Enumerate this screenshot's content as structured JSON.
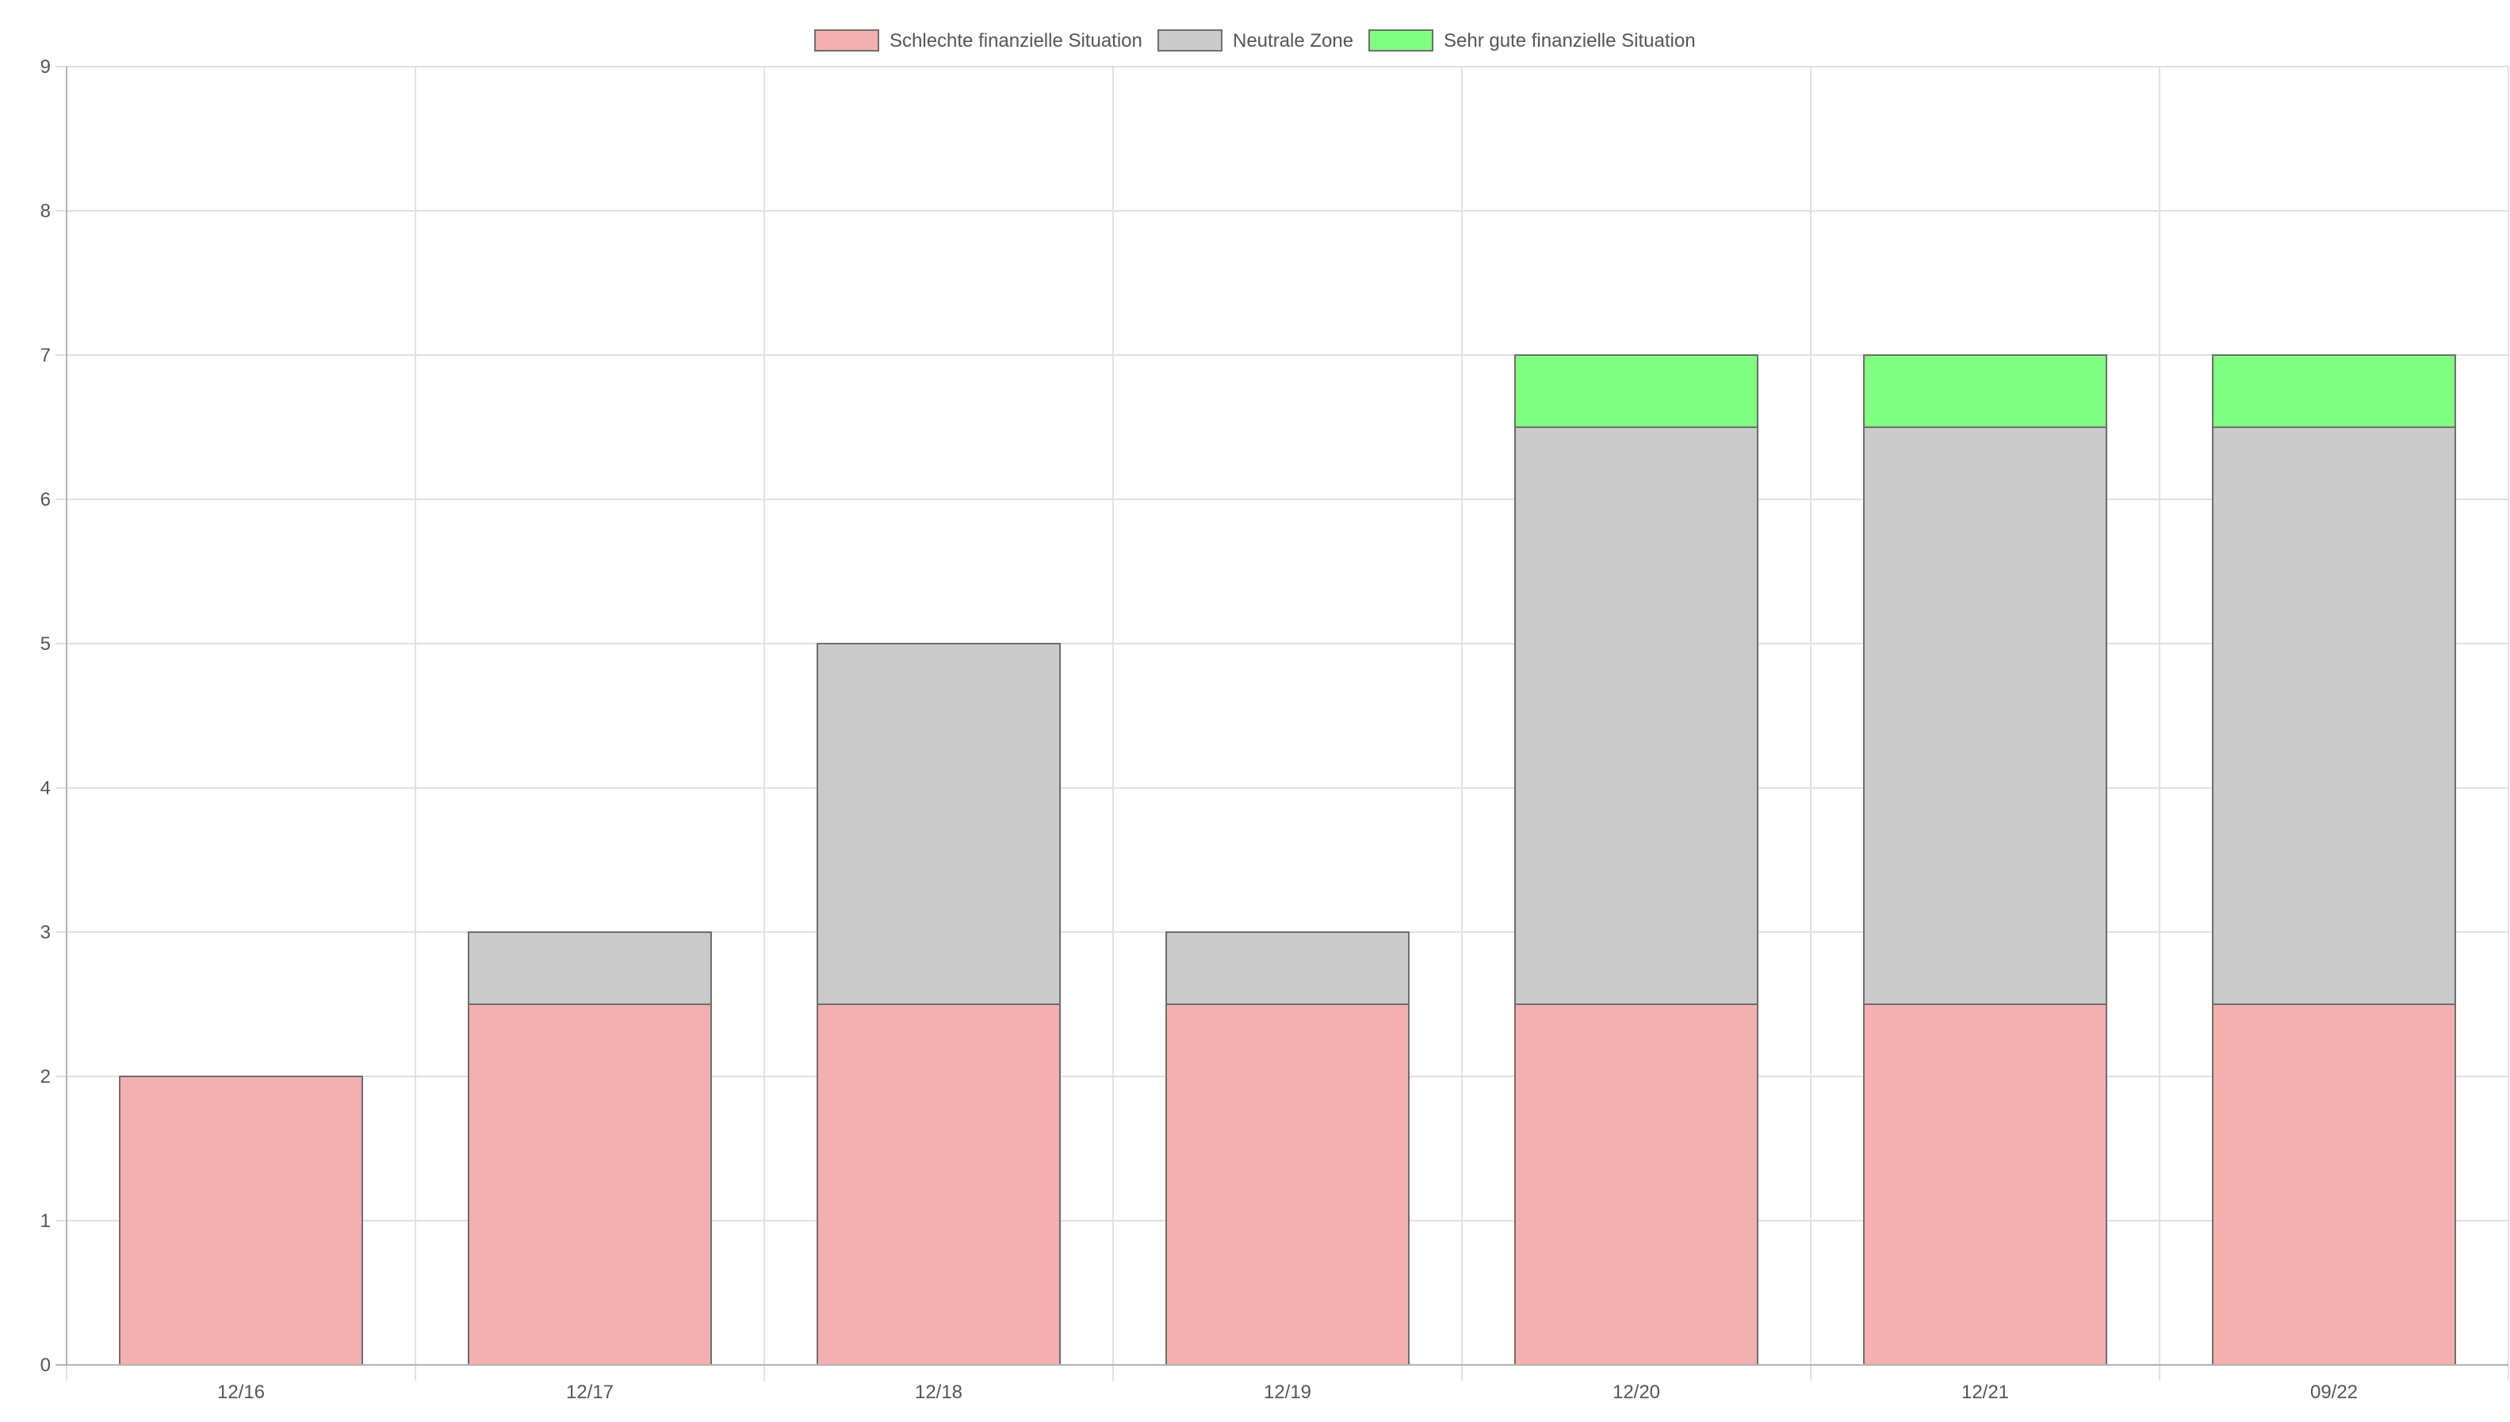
{
  "chart_data": {
    "type": "bar",
    "stacked": true,
    "categories": [
      "12/16",
      "12/17",
      "12/18",
      "12/19",
      "12/20",
      "12/21",
      "09/22"
    ],
    "series": [
      {
        "name": "Schlechte finanzielle Situation",
        "color": "#f4b0b0",
        "values": [
          2,
          2.5,
          2.5,
          2.5,
          2.5,
          2.5,
          2.5
        ]
      },
      {
        "name": "Neutrale Zone",
        "color": "#cacaca",
        "values": [
          0,
          0.5,
          2.5,
          0.5,
          4,
          4,
          4
        ]
      },
      {
        "name": "Sehr gute finanzielle Situation",
        "color": "#80ff80",
        "values": [
          0,
          0,
          0,
          0,
          0.5,
          0.5,
          0.5
        ]
      }
    ],
    "title": "",
    "xlabel": "",
    "ylabel": "",
    "ylim": [
      0,
      9
    ],
    "yticks": [
      0,
      1,
      2,
      3,
      4,
      5,
      6,
      7,
      8,
      9
    ],
    "grid": true,
    "legend_position": "top-center"
  }
}
